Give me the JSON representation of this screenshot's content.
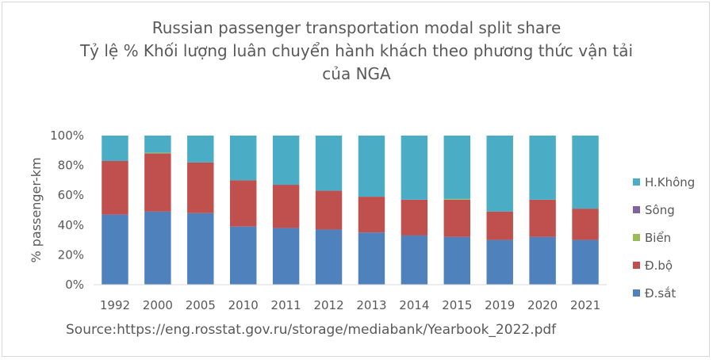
{
  "chart_data": {
    "type": "bar",
    "stacked": true,
    "title_lines": [
      "Russian passenger transportation modal split share",
      "Tỷ lệ % Khối lượng luân chuyển hành khách theo phương thức vận tải",
      "của NGA"
    ],
    "xlabel": "",
    "ylabel": "% passenger-km",
    "ylim": [
      0,
      100
    ],
    "y_ticks": [
      "0%",
      "20%",
      "40%",
      "60%",
      "80%",
      "100%"
    ],
    "grid": false,
    "legend_position": "right",
    "categories": [
      "1992",
      "2000",
      "2005",
      "2010",
      "2011",
      "2012",
      "2013",
      "2014",
      "2015",
      "2019",
      "2020",
      "2021"
    ],
    "series": [
      {
        "name": "Đ.sắt",
        "color": "#4f81bd",
        "values": [
          47,
          49,
          48,
          39,
          38,
          37,
          35,
          33,
          32,
          30,
          32,
          30
        ]
      },
      {
        "name": "Đ.bộ",
        "color": "#c0504d",
        "values": [
          36,
          39,
          34,
          31,
          29,
          26,
          24,
          24,
          25,
          19,
          25,
          21
        ]
      },
      {
        "name": "Biển",
        "color": "#9bbb59",
        "values": [
          0,
          0.5,
          0,
          0,
          0,
          0,
          0,
          0,
          0.5,
          0,
          0,
          0
        ]
      },
      {
        "name": "Sông",
        "color": "#8064a2",
        "values": [
          0,
          0,
          0,
          0,
          0,
          0,
          0,
          0,
          0,
          0,
          0,
          0
        ]
      },
      {
        "name": "H.Không",
        "color": "#4bacc6",
        "values": [
          17,
          11.5,
          18,
          30,
          33,
          37,
          41,
          43,
          42.5,
          51,
          43,
          49
        ]
      }
    ],
    "legend_order": [
      "H.Không",
      "Sông",
      "Biển",
      "Đ.bộ",
      "Đ.sắt"
    ]
  },
  "source": "Source:https://eng.rosstat.gov.ru/storage/mediabank/Yearbook_2022.pdf"
}
